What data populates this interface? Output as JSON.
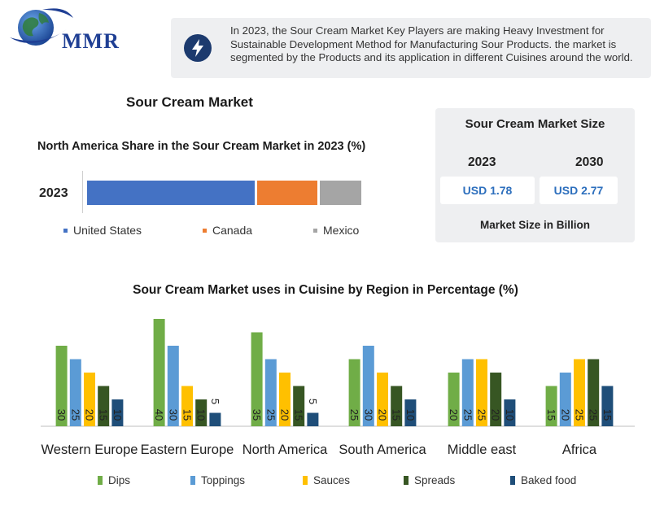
{
  "header": {
    "logo_text": "MMR",
    "banner_text": "In 2023, the Sour Cream Market Key Players are making Heavy Investment for Sustainable Development Method for Manufacturing Sour Products. the market is segmented by the Products and its application in different Cuisines around the world.",
    "banner_icon": "lightning-icon"
  },
  "main_title": "Sour Cream Market",
  "market_size": {
    "title": "Sour Cream Market Size",
    "years": [
      "2023",
      "2030"
    ],
    "values": [
      "USD 1.78",
      "USD 2.77"
    ],
    "footer": "Market Size in Billion"
  },
  "chart_data": [
    {
      "type": "bar",
      "orientation": "horizontal-stacked",
      "title": "North America Share in the Sour Cream Market in 2023 (%)",
      "categories": [
        "2023"
      ],
      "series": [
        {
          "name": "United States",
          "values": [
            62
          ],
          "color": "#4472c4"
        },
        {
          "name": "Canada",
          "values": [
            23
          ],
          "color": "#ed7d31"
        },
        {
          "name": "Mexico",
          "values": [
            15
          ],
          "color": "#a5a5a5"
        }
      ],
      "legend": "bottom"
    },
    {
      "type": "bar",
      "title": "Sour Cream Market uses in Cuisine by Region in Percentage (%)",
      "categories": [
        "Western Europe",
        "Eastern Europe",
        "North America",
        "South America",
        "Middle east",
        "Africa"
      ],
      "series": [
        {
          "name": "Dips",
          "color": "#70ad47",
          "values": [
            30,
            40,
            35,
            25,
            20,
            15
          ]
        },
        {
          "name": "Toppings",
          "color": "#5b9bd5",
          "values": [
            25,
            30,
            25,
            30,
            25,
            20
          ]
        },
        {
          "name": "Sauces",
          "color": "#ffc000",
          "values": [
            20,
            15,
            20,
            20,
            25,
            25
          ]
        },
        {
          "name": "Spreads",
          "color": "#375623",
          "values": [
            15,
            10,
            15,
            15,
            20,
            25
          ]
        },
        {
          "name": "Baked food",
          "color": "#1f4e79",
          "values": [
            10,
            5,
            5,
            10,
            10,
            15
          ]
        }
      ],
      "labels_shown": [
        [
          "30",
          "25",
          "20",
          "15",
          "10"
        ],
        [
          "40",
          "30",
          "15",
          "10",
          "5"
        ],
        [
          "35",
          "25",
          "20",
          "15",
          "5"
        ],
        [
          "25",
          "30",
          "20",
          "15",
          "10"
        ],
        [
          "20",
          "25",
          "25",
          "20",
          "10"
        ],
        [
          "15",
          "20",
          "25",
          "25",
          "15"
        ]
      ],
      "ylim": [
        0,
        40
      ],
      "legend": "bottom"
    }
  ]
}
